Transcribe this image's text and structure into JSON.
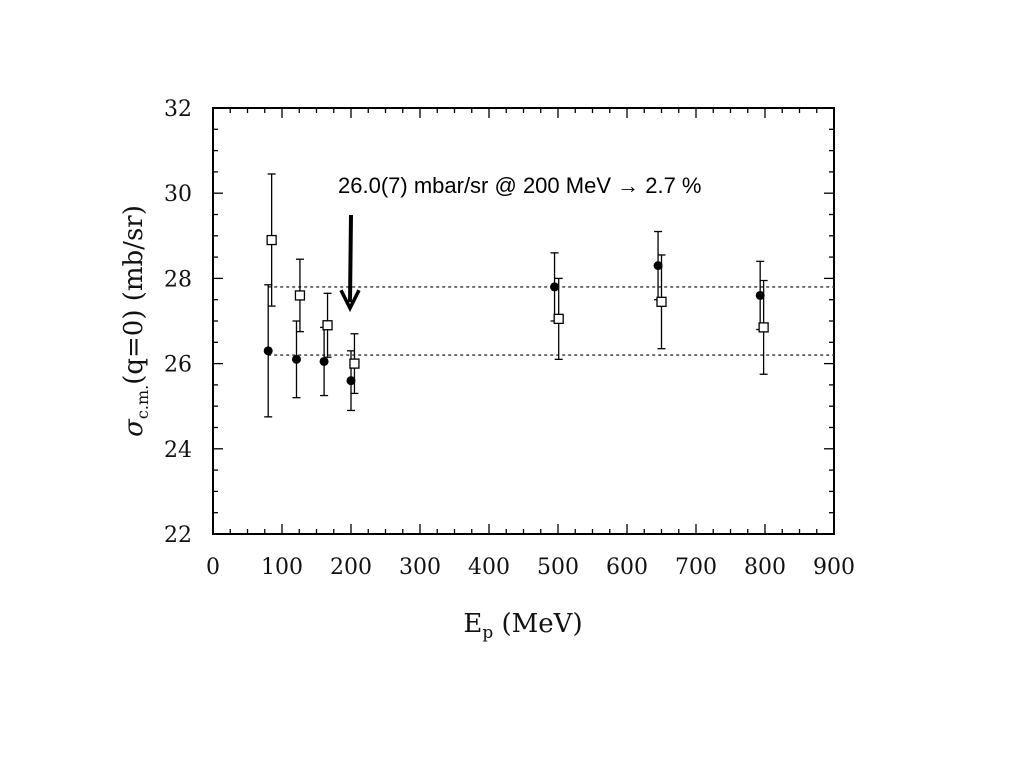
{
  "chart_data": {
    "type": "scatter",
    "xlabel": "E",
    "xlabel_sub": "p",
    "xlabel_unit": " (MeV)",
    "ylabel": "σ",
    "ylabel_sub": "c.m.",
    "ylabel_rest": "(q=0) (mb/sr)",
    "xlim": [
      0,
      900
    ],
    "ylim": [
      22,
      32
    ],
    "xticks": [
      "0",
      "100",
      "200",
      "300",
      "400",
      "500",
      "600",
      "700",
      "800",
      "900"
    ],
    "yticks": [
      "22",
      "24",
      "26",
      "28",
      "30",
      "32"
    ],
    "reference_lines": [
      27.8,
      26.2
    ],
    "annotation": "26.0(7) mbar/sr @ 200 MeV → 2.7 %",
    "annotation_arrow_at": {
      "x": 200,
      "y": 27.3
    },
    "series": [
      {
        "marker": "filled-circle",
        "points": [
          {
            "x": 80,
            "y": 26.3,
            "err": 1.55
          },
          {
            "x": 121,
            "y": 26.1,
            "err": 0.9
          },
          {
            "x": 161,
            "y": 26.05,
            "err": 0.8
          },
          {
            "x": 200,
            "y": 25.6,
            "err": 0.7
          },
          {
            "x": 495,
            "y": 27.8,
            "err": 0.8
          },
          {
            "x": 645,
            "y": 28.3,
            "err": 0.8
          },
          {
            "x": 793,
            "y": 27.6,
            "err": 0.8
          }
        ]
      },
      {
        "marker": "open-square",
        "points": [
          {
            "x": 85,
            "y": 28.9,
            "err": 1.55
          },
          {
            "x": 126,
            "y": 27.6,
            "err": 0.85
          },
          {
            "x": 166,
            "y": 26.9,
            "err": 0.75
          },
          {
            "x": 205,
            "y": 26.0,
            "err": 0.7
          },
          {
            "x": 501,
            "y": 27.05,
            "err": 0.95
          },
          {
            "x": 650,
            "y": 27.45,
            "err": 1.1
          },
          {
            "x": 798,
            "y": 26.85,
            "err": 1.1
          }
        ]
      }
    ]
  }
}
